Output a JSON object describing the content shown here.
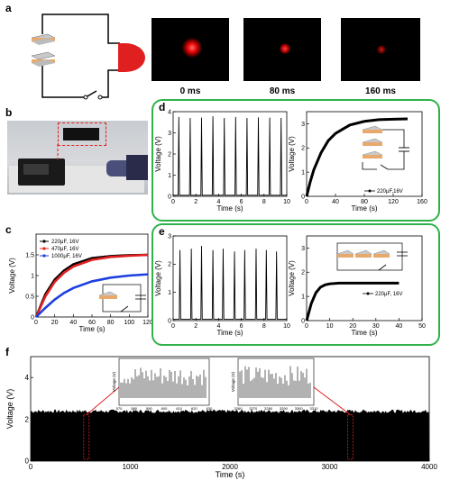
{
  "panels": {
    "a": {
      "label": "a",
      "frames": [
        "0 ms",
        "80 ms",
        "160 ms"
      ]
    },
    "b": {
      "label": "b"
    },
    "c": {
      "label": "c"
    },
    "d": {
      "label": "d"
    },
    "e": {
      "label": "e"
    },
    "f": {
      "label": "f"
    }
  },
  "colors": {
    "green_frame": "#2fb24a",
    "red": "#e02020",
    "blue": "#1c3fe0"
  },
  "chart_data": [
    {
      "id": "c",
      "type": "line",
      "xlabel": "Time (s)",
      "ylabel": "Voltage (V)",
      "xlim": [
        0,
        120
      ],
      "ylim": [
        0,
        2.0
      ],
      "xticks": [
        0,
        20,
        40,
        60,
        80,
        100,
        120
      ],
      "yticks": [
        0.0,
        0.5,
        1.0,
        1.5
      ],
      "legend_position": "top-left",
      "series": [
        {
          "name": "220μF, 16V",
          "color": "#000000",
          "x": [
            0,
            10,
            20,
            30,
            40,
            60,
            80,
            100,
            120
          ],
          "y": [
            0,
            0.55,
            0.9,
            1.12,
            1.27,
            1.42,
            1.47,
            1.49,
            1.5
          ]
        },
        {
          "name": "470μF, 16V",
          "color": "#e02020",
          "x": [
            0,
            10,
            20,
            30,
            40,
            60,
            80,
            100,
            120
          ],
          "y": [
            0,
            0.5,
            0.85,
            1.07,
            1.22,
            1.38,
            1.45,
            1.48,
            1.5
          ]
        },
        {
          "name": "1000μF, 16V",
          "color": "#1c3fe0",
          "x": [
            0,
            10,
            20,
            30,
            40,
            60,
            80,
            100,
            120
          ],
          "y": [
            0,
            0.22,
            0.42,
            0.58,
            0.7,
            0.86,
            0.95,
            1.0,
            1.03
          ]
        }
      ]
    },
    {
      "id": "d-left",
      "type": "line",
      "xlabel": "Time (s)",
      "ylabel": "Voltage (V)",
      "xlim": [
        0,
        10
      ],
      "ylim": [
        0,
        4
      ],
      "xticks": [
        0,
        2,
        4,
        6,
        8,
        10
      ],
      "yticks": [
        0,
        1,
        2,
        3,
        4
      ],
      "peaks_x": [
        0.5,
        1.5,
        2.5,
        3.5,
        4.5,
        5.5,
        6.5,
        7.5,
        8.5,
        9.5
      ],
      "peaks_y": [
        3.75,
        3.7,
        3.72,
        3.78,
        3.7,
        3.75,
        3.7,
        3.73,
        3.72,
        3.7
      ],
      "baseline": 0.05
    },
    {
      "id": "d-right",
      "type": "line",
      "xlabel": "Time (s)",
      "ylabel": "Voltage (V)",
      "xlim": [
        0,
        160
      ],
      "ylim": [
        0,
        3.5
      ],
      "xticks": [
        0,
        40,
        80,
        120,
        160
      ],
      "yticks": [
        0,
        1,
        2,
        3
      ],
      "series": [
        {
          "name": "220μF,16V",
          "color": "#000000",
          "x": [
            0,
            5,
            10,
            20,
            30,
            40,
            60,
            80,
            100,
            120,
            140
          ],
          "y": [
            0,
            0.6,
            1.1,
            1.8,
            2.3,
            2.6,
            2.95,
            3.1,
            3.17,
            3.19,
            3.2
          ]
        }
      ]
    },
    {
      "id": "e-left",
      "type": "line",
      "xlabel": "Time (s)",
      "ylabel": "Voltage (V)",
      "xlim": [
        0,
        10
      ],
      "ylim": [
        0,
        3
      ],
      "xticks": [
        0,
        2,
        4,
        6,
        8,
        10
      ],
      "yticks": [
        0,
        1,
        2,
        3
      ],
      "peaks_x": [
        0.6,
        1.6,
        2.5,
        3.5,
        4.4,
        5.4,
        6.3,
        7.3,
        8.2,
        9.1
      ],
      "peaks_y": [
        2.5,
        2.55,
        2.65,
        2.5,
        2.55,
        2.45,
        2.5,
        2.55,
        2.5,
        2.45
      ],
      "baseline": 0.05
    },
    {
      "id": "e-right",
      "type": "line",
      "xlabel": "Time (s)",
      "ylabel": "Voltage (V)",
      "xlim": [
        0,
        50
      ],
      "ylim": [
        0,
        3.5
      ],
      "xticks": [
        0,
        10,
        20,
        30,
        40,
        50
      ],
      "yticks": [
        0,
        1,
        2,
        3
      ],
      "series": [
        {
          "name": "220μF, 16V",
          "color": "#000000",
          "x": [
            0,
            2,
            4,
            6,
            8,
            10,
            14,
            20,
            30,
            40
          ],
          "y": [
            0,
            0.7,
            1.15,
            1.38,
            1.48,
            1.52,
            1.55,
            1.55,
            1.55,
            1.55
          ]
        }
      ]
    },
    {
      "id": "f",
      "type": "area",
      "xlabel": "Time (s)",
      "ylabel": "Voltage (V)",
      "xlim": [
        0,
        4000
      ],
      "ylim": [
        0,
        5
      ],
      "xticks": [
        0,
        1000,
        2000,
        3000,
        4000
      ],
      "yticks": [
        0,
        2,
        4
      ],
      "upper_level": 2.3,
      "lower_level": 0,
      "insets": [
        {
          "xlabel": "Time (s)",
          "ylabel": "Voltage (V)",
          "xticks": [
            "570",
            "580",
            "590",
            "600",
            "610",
            "620",
            "630"
          ],
          "near_x": 550
        },
        {
          "xlabel": "Time (s)",
          "ylabel": "Voltage (V)",
          "xticks": [
            "3260",
            "3270",
            "3280",
            "3290",
            "3300",
            "3310"
          ],
          "near_x": 3200
        }
      ]
    }
  ]
}
